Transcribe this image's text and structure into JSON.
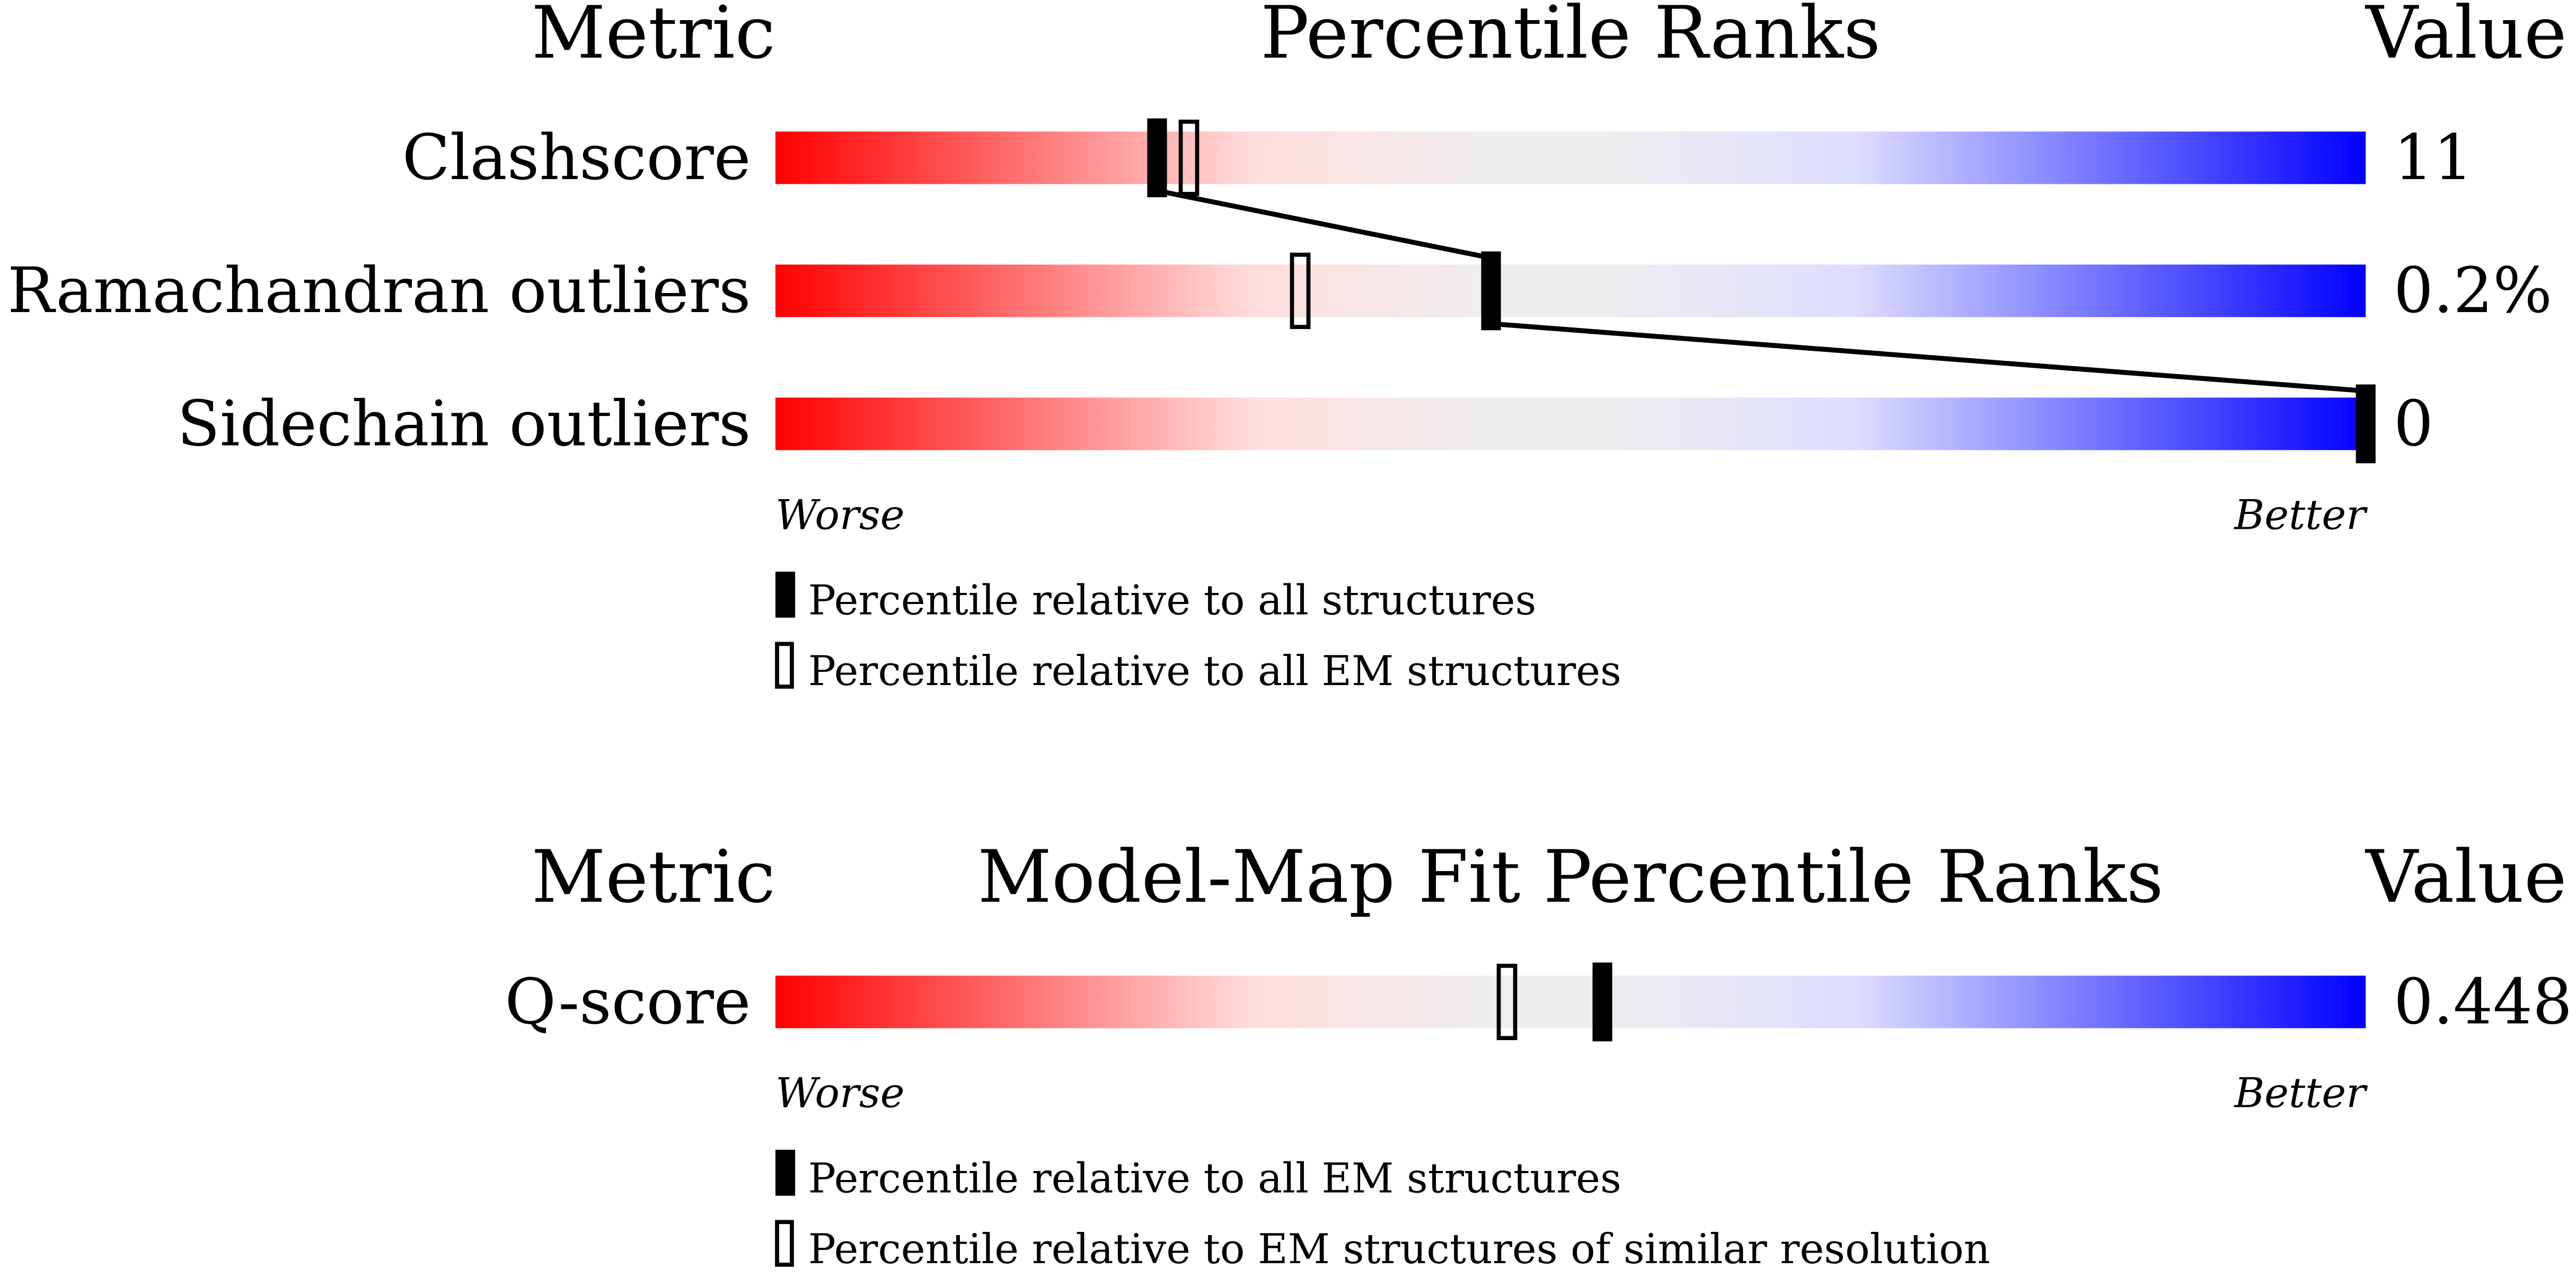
{
  "panels": [
    {
      "header": {
        "metric": "Metric",
        "title": "Percentile Ranks",
        "value": "Value"
      },
      "rows": [
        {
          "label": "Clashscore",
          "value": "11",
          "percentile_filled": 24,
          "percentile_open": 26
        },
        {
          "label": "Ramachandran outliers",
          "value": "0.2%",
          "percentile_filled": 45,
          "percentile_open": 33
        },
        {
          "label": "Sidechain outliers",
          "value": "0",
          "percentile_filled": 100
        }
      ],
      "connect": true,
      "worse": "Worse",
      "better": "Better",
      "legend": [
        {
          "text": "Percentile relative to all structures",
          "marker": "filled"
        },
        {
          "text": "Percentile relative to all EM structures",
          "marker": "open"
        }
      ]
    },
    {
      "header": {
        "metric": "Metric",
        "title": "Model-Map Fit Percentile Ranks",
        "value": "Value"
      },
      "rows": [
        {
          "label": "Q-score",
          "value": "0.448",
          "percentile_filled": 52,
          "percentile_open": 46
        }
      ],
      "connect": false,
      "worse": "Worse",
      "better": "Better",
      "legend": [
        {
          "text": "Percentile relative to all EM structures",
          "marker": "filled"
        },
        {
          "text": "Percentile relative to EM structures of similar resolution",
          "marker": "open"
        }
      ]
    }
  ]
}
